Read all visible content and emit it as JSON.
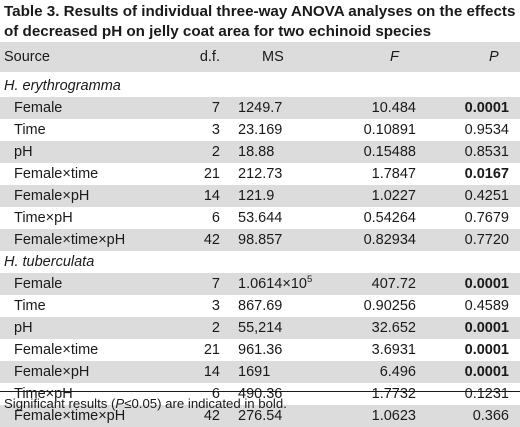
{
  "title": "Table 3. Results of individual three-way ANOVA analyses on the effects of decreased pH on jelly coat area for two echinoid species",
  "headers": {
    "source": "Source",
    "df": "d.f.",
    "ms": "MS",
    "f": "F",
    "p": "P"
  },
  "groups": [
    {
      "name": "H. erythrogramma",
      "rows": [
        {
          "source": "Female",
          "df": "7",
          "ms": "1249.7",
          "f": "10.484",
          "p": "0.0001",
          "bold": true
        },
        {
          "source": "Time",
          "df": "3",
          "ms": "23.169",
          "f": "0.10891",
          "p": "0.9534",
          "bold": false
        },
        {
          "source": "pH",
          "df": "2",
          "ms": "18.88",
          "f": "0.15488",
          "p": "0.8531",
          "bold": false
        },
        {
          "source": "Female×time",
          "df": "21",
          "ms": "212.73",
          "f": "1.7847",
          "p": "0.0167",
          "bold": true
        },
        {
          "source": "Female×pH",
          "df": "14",
          "ms": "121.9",
          "f": "1.0227",
          "p": "0.4251",
          "bold": false
        },
        {
          "source": "Time×pH",
          "df": "6",
          "ms": "53.644",
          "f": "0.54264",
          "p": "0.7679",
          "bold": false
        },
        {
          "source": "Female×time×pH",
          "df": "42",
          "ms": "98.857",
          "f": "0.82934",
          "p": "0.7720",
          "bold": false
        }
      ]
    },
    {
      "name": "H. tuberculata",
      "rows": [
        {
          "source": "Female",
          "df": "7",
          "ms": "1.0614×10",
          "ms_sup": "5",
          "f": "407.72",
          "p": "0.0001",
          "bold": true
        },
        {
          "source": "Time",
          "df": "3",
          "ms": "867.69",
          "f": "0.90256",
          "p": "0.4589",
          "bold": false
        },
        {
          "source": "pH",
          "df": "2",
          "ms": "55,214",
          "f": "32.652",
          "p": "0.0001",
          "bold": true
        },
        {
          "source": "Female×time",
          "df": "21",
          "ms": "961.36",
          "f": "3.6931",
          "p": "0.0001",
          "bold": true
        },
        {
          "source": "Female×pH",
          "df": "14",
          "ms": "1691",
          "f": "6.496",
          "p": "0.0001",
          "bold": true
        },
        {
          "source": "Time×pH",
          "df": "6",
          "ms": "490.36",
          "f": "1.7732",
          "p": "0.1231",
          "bold": false
        },
        {
          "source": "Female×time×pH",
          "df": "42",
          "ms": "276.54",
          "f": "1.0623",
          "p": "0.366",
          "bold": false
        }
      ]
    }
  ],
  "footnote": {
    "before": "Significant results (",
    "italic": "P",
    "after": "≤0.05) are indicated in bold."
  }
}
